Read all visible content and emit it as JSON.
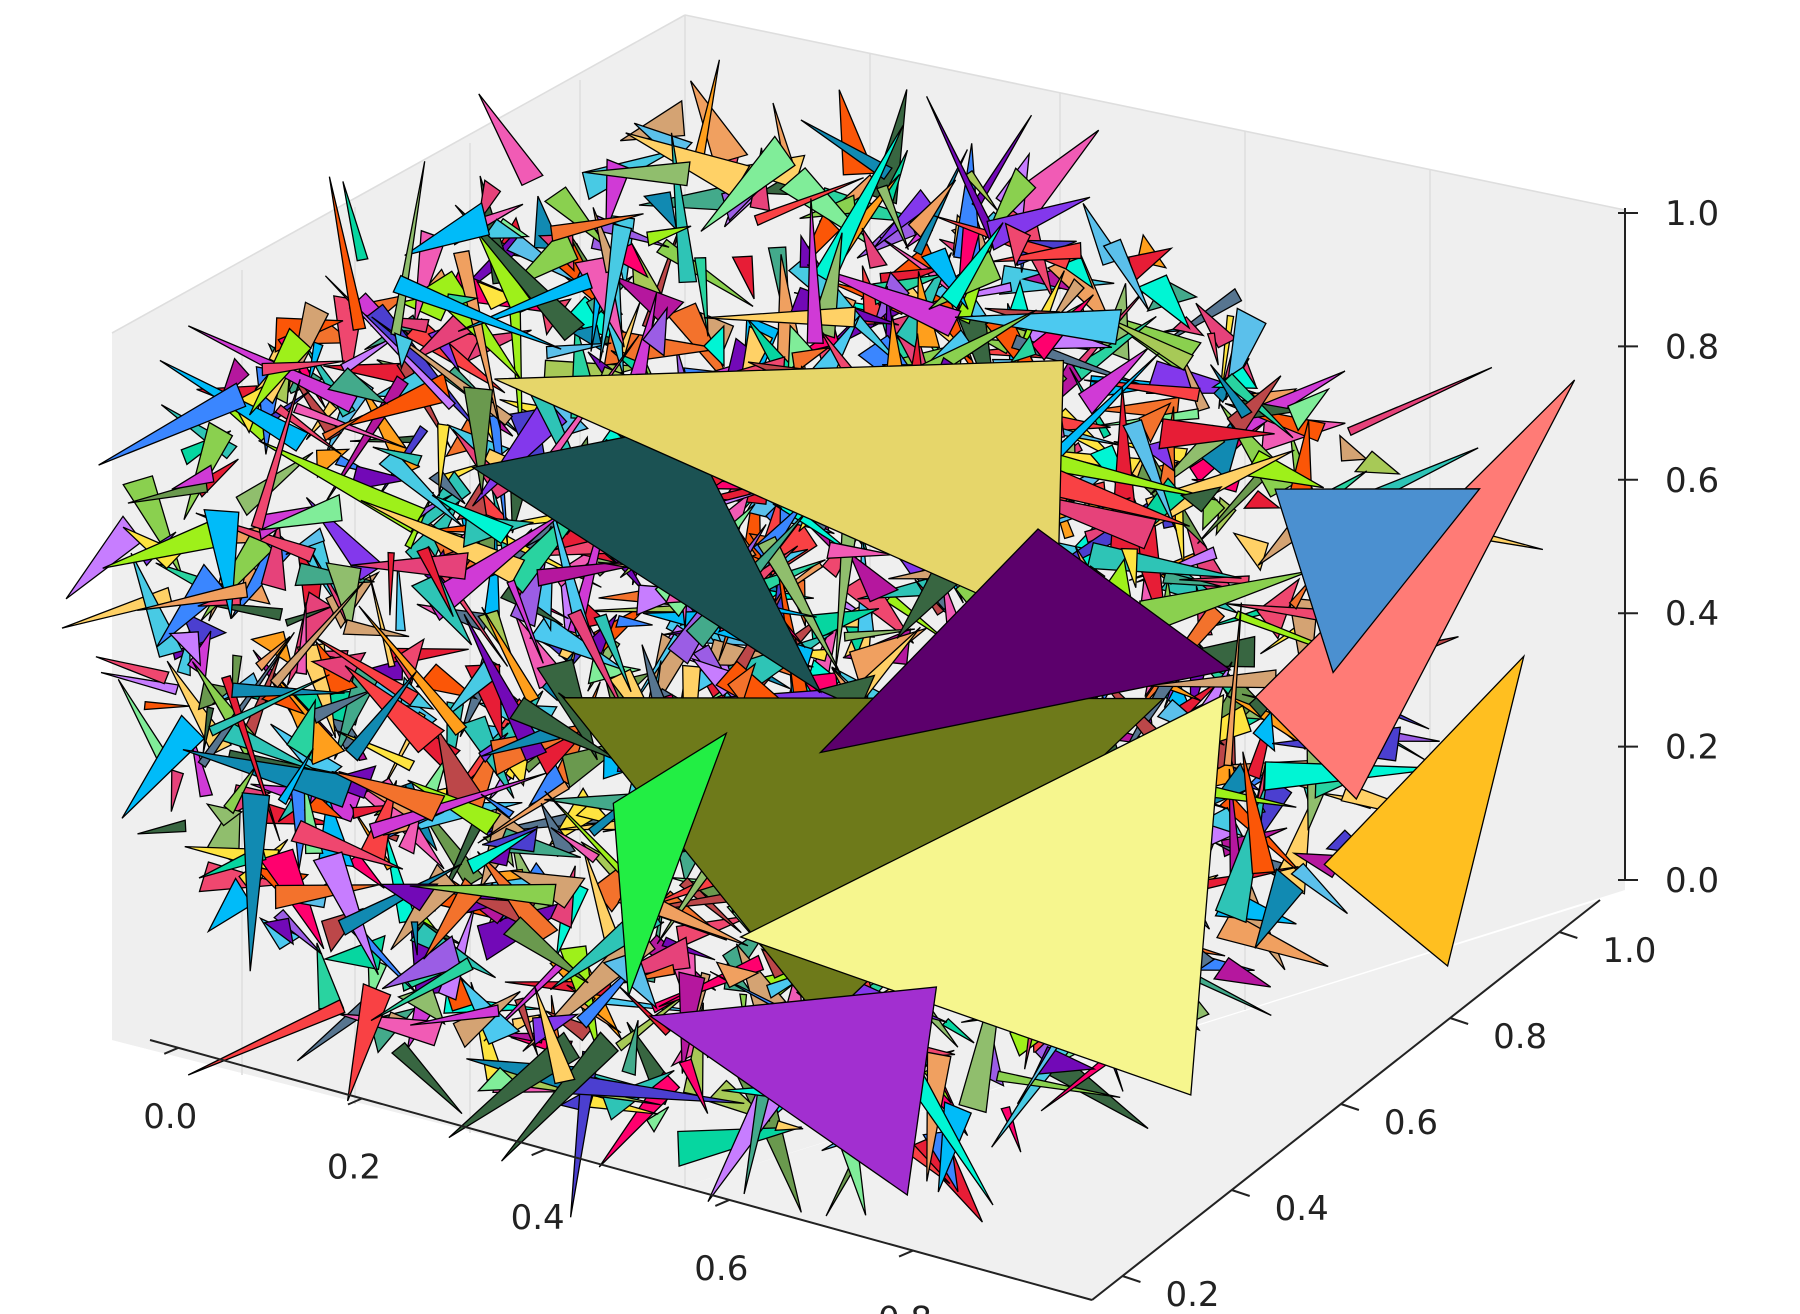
{
  "chart_data": {
    "type": "3d-polygon-collection",
    "title": "",
    "xlabel": "",
    "ylabel": "",
    "zlabel": "",
    "x_ticks": [
      "0.0",
      "0.2",
      "0.4",
      "0.6",
      "0.8"
    ],
    "y_ticks": [
      "0.2",
      "0.4",
      "0.6",
      "0.8",
      "1.0"
    ],
    "z_ticks": [
      "0.0",
      "0.2",
      "0.4",
      "0.6",
      "0.8",
      "1.0"
    ],
    "xlim": [
      0,
      1
    ],
    "ylim": [
      0,
      1
    ],
    "zlim": [
      0,
      1
    ],
    "grid": true,
    "pane_color": "#f2f2f2",
    "edge_color": "#000000",
    "polygons": [
      {
        "name": "tri-dark-teal",
        "color": "#1b5253",
        "vertices": [
          [
            0.1,
            0.45,
            0.62
          ],
          [
            0.38,
            0.35,
            0.85
          ],
          [
            0.55,
            0.3,
            0.55
          ]
        ]
      },
      {
        "name": "tri-sand",
        "color": "#e6d66a",
        "vertices": [
          [
            0.15,
            0.4,
            0.8
          ],
          [
            0.7,
            0.5,
            0.98
          ],
          [
            0.72,
            0.45,
            0.62
          ]
        ]
      },
      {
        "name": "tri-olive",
        "color": "#6e7a1a",
        "vertices": [
          [
            0.32,
            0.22,
            0.5
          ],
          [
            0.58,
            0.25,
            0.1
          ],
          [
            0.86,
            0.4,
            0.6
          ]
        ]
      },
      {
        "name": "tri-pale-yellow",
        "color": "#f6f68e",
        "vertices": [
          [
            0.53,
            0.18,
            0.25
          ],
          [
            0.87,
            0.5,
            0.55
          ],
          [
            0.9,
            0.38,
            0.04
          ]
        ]
      },
      {
        "name": "tri-purple",
        "color": "#5c006c",
        "vertices": [
          [
            0.55,
            0.3,
            0.46
          ],
          [
            0.7,
            0.45,
            0.76
          ],
          [
            0.85,
            0.55,
            0.55
          ]
        ]
      },
      {
        "name": "tri-salmon",
        "color": "#ff7b76",
        "vertices": [
          [
            0.85,
            0.6,
            0.48
          ],
          [
            0.93,
            0.65,
            0.33
          ],
          [
            1.0,
            0.95,
            0.8
          ]
        ]
      },
      {
        "name": "tri-steel-blue",
        "color": "#4b90d0",
        "vertices": [
          [
            0.86,
            0.62,
            0.78
          ],
          [
            0.9,
            0.66,
            0.5
          ],
          [
            0.98,
            0.8,
            0.72
          ]
        ]
      },
      {
        "name": "tri-amber",
        "color": "#ffbf20",
        "vertices": [
          [
            0.95,
            0.55,
            0.3
          ],
          [
            1.0,
            0.85,
            0.45
          ],
          [
            1.0,
            0.7,
            0.08
          ]
        ]
      },
      {
        "name": "tri-green",
        "color": "#22ee44",
        "vertices": [
          [
            0.33,
            0.3,
            0.3
          ],
          [
            0.4,
            0.2,
            0.1
          ],
          [
            0.45,
            0.3,
            0.45
          ]
        ]
      },
      {
        "name": "tri-violet",
        "color": "#a22fd0",
        "vertices": [
          [
            0.45,
            0.15,
            0.12
          ],
          [
            0.7,
            0.25,
            0.2
          ],
          [
            0.75,
            0.1,
            0.0
          ]
        ]
      }
    ]
  }
}
